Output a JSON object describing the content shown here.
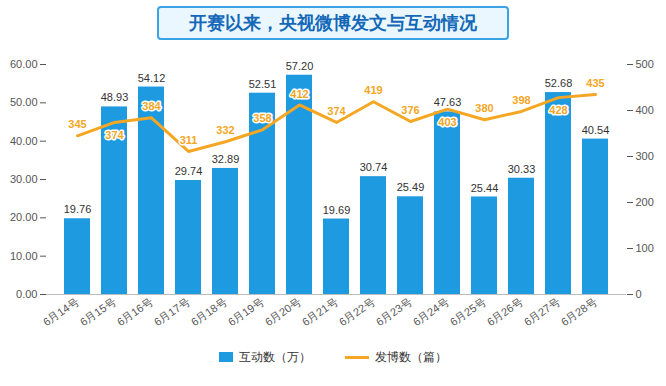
{
  "chart_data": {
    "type": "bar",
    "title": "开赛以来，央视微博发文与互动情况",
    "categories": [
      "6月14号",
      "6月15号",
      "6月16号",
      "6月17号",
      "6月18号",
      "6月19号",
      "6月20号",
      "6月21号",
      "6月22号",
      "6月23号",
      "6月24号",
      "6月25号",
      "6月26号",
      "6月27号",
      "6月28号"
    ],
    "series": [
      {
        "name": "互动数（万）",
        "type": "bar",
        "color": "#1e9be0",
        "values": [
          19.76,
          48.93,
          54.12,
          29.74,
          32.89,
          52.51,
          57.2,
          19.69,
          30.74,
          25.49,
          47.63,
          25.44,
          30.33,
          52.68,
          40.54
        ],
        "value_labels": [
          "19.76",
          "48.93",
          "54.12",
          "29.74",
          "32.89",
          "52.51",
          "57.20",
          "19.69",
          "30.74",
          "25.49",
          "47.63",
          "25.44",
          "30.33",
          "52.68",
          "40.54"
        ]
      },
      {
        "name": "发博数（篇）",
        "type": "line",
        "axis": "y2",
        "color": "#f5a623",
        "values": [
          345,
          374,
          384,
          311,
          332,
          358,
          412,
          374,
          419,
          376,
          403,
          380,
          398,
          428,
          435
        ]
      }
    ],
    "ylim": [
      0,
      60
    ],
    "yticks": [
      {
        "value": 0,
        "label": "0.00"
      },
      {
        "value": 10,
        "label": "10.00"
      },
      {
        "value": 20,
        "label": "20.00"
      },
      {
        "value": 30,
        "label": "30.00"
      },
      {
        "value": 40,
        "label": "40.00"
      },
      {
        "value": 50,
        "label": "50.00"
      },
      {
        "value": 60,
        "label": "60.00"
      }
    ],
    "y2lim": [
      0,
      500
    ],
    "y2ticks": [
      0,
      100,
      200,
      300,
      400,
      500
    ],
    "data_labels": true,
    "legend": "bottom",
    "grid": false
  }
}
